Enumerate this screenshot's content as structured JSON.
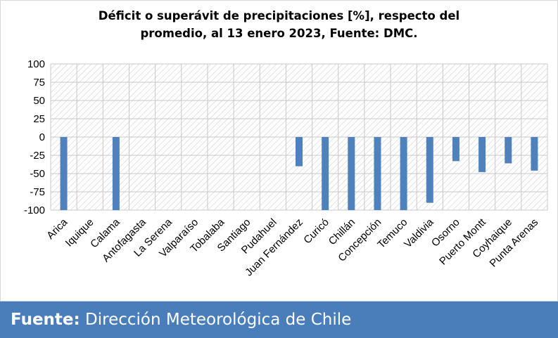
{
  "chart_data": {
    "type": "bar",
    "title_line1": "Déficit o superávit de precipitaciones [%], respecto del",
    "title_line2": "promedio, al 13 enero 2023, Fuente: DMC.",
    "categories": [
      "Arica",
      "Iquique",
      "Calama",
      "Antofagasta",
      "La Serena",
      "Valparaíso",
      "Tobalaba",
      "Santiago",
      "Pudahuel",
      "Juan Fernández",
      "Curicó",
      "Chillán",
      "Concepción",
      "Temuco",
      "Valdivia",
      "Osorno",
      "Puerto Montt",
      "Coyhaique",
      "Punta Arenas"
    ],
    "values": [
      -100,
      0,
      -100,
      0,
      0,
      0,
      0,
      0,
      0,
      -40,
      -100,
      -100,
      -100,
      -100,
      -90,
      -33,
      -48,
      -36,
      -46
    ],
    "ylim": [
      -100,
      100
    ],
    "yticks": [
      100,
      75,
      50,
      25,
      0,
      -25,
      -50,
      -75,
      -100
    ],
    "grid": true,
    "plot_background": "hatched",
    "bar_color": "#4f81bd"
  },
  "footer": {
    "label": "Fuente:",
    "text": "Dirección Meteorológica de Chile",
    "background": "#4a7ebb"
  }
}
